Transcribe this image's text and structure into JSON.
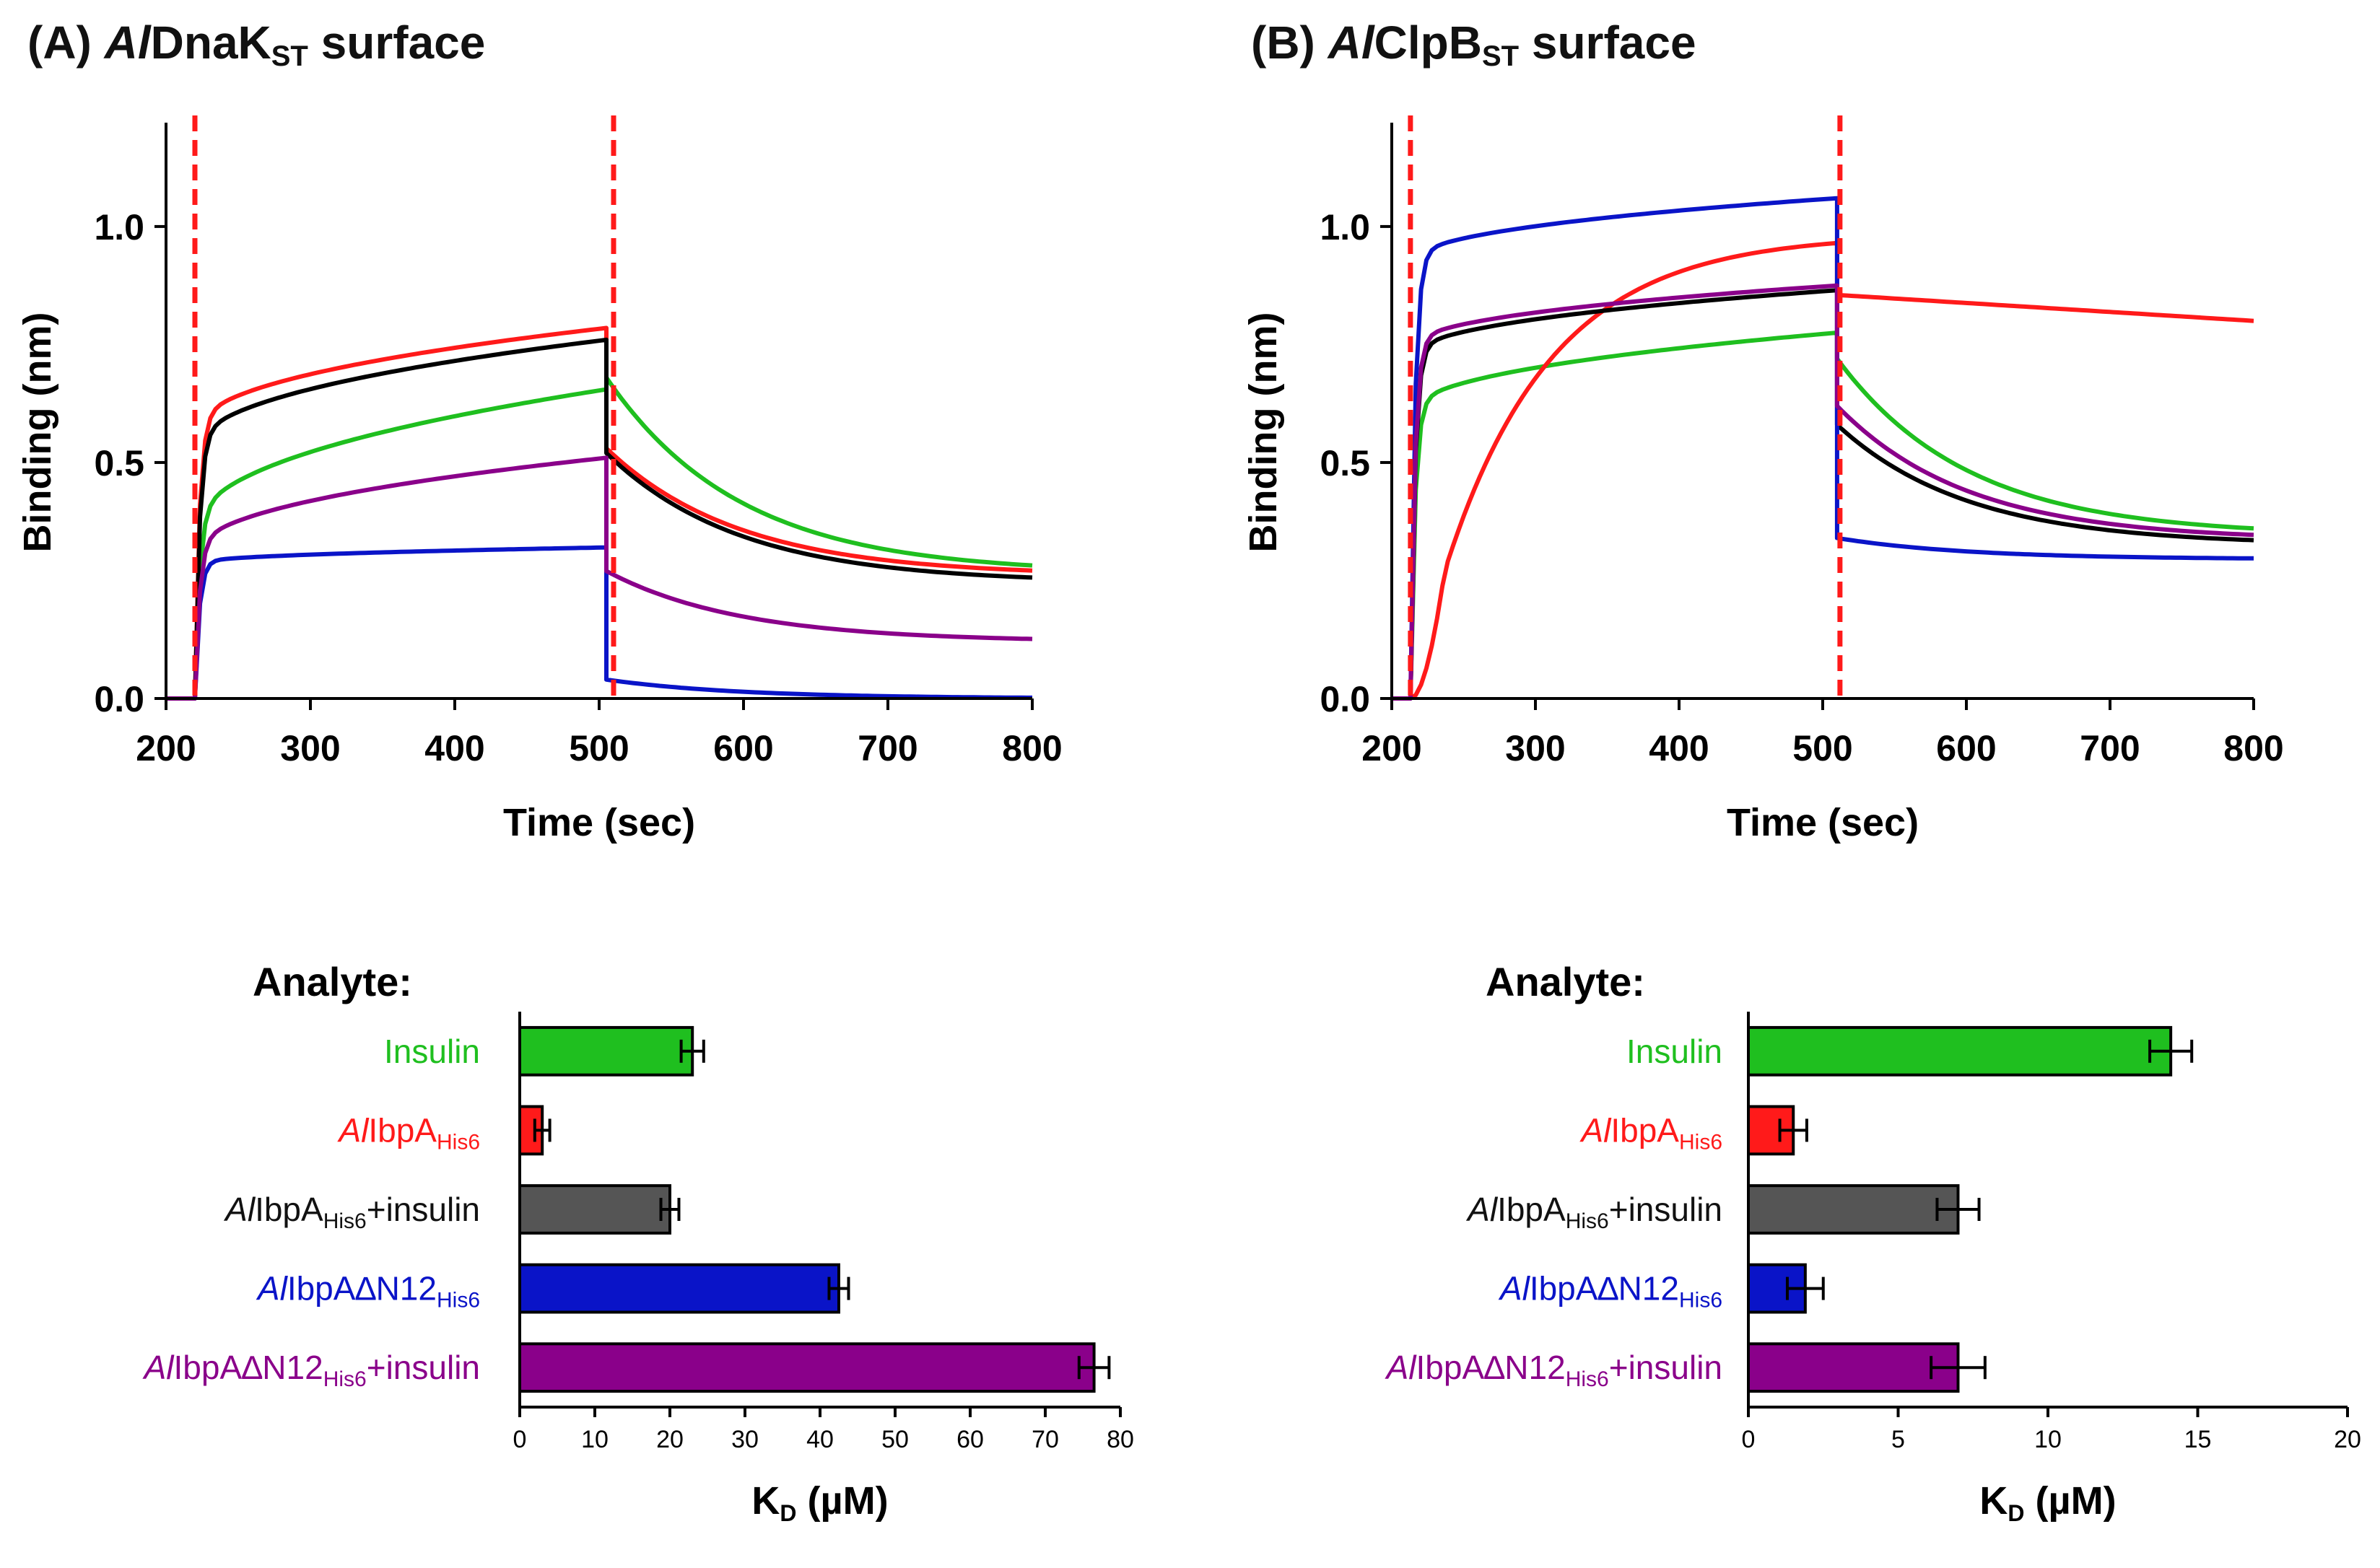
{
  "panels": {
    "A": {
      "letter": "(A)",
      "italic": "Al",
      "main": "DnaK",
      "sub": "ST",
      "suffix": " surface"
    },
    "B": {
      "letter": "(B)",
      "italic": "Al",
      "main": "ClpB",
      "sub": "ST",
      "suffix": " surface"
    }
  },
  "colors": {
    "insulin": "#1fbf1f",
    "ibpA": "#ff1a1a",
    "ibpA_insulin": "#555555",
    "dN12": "#0a14c8",
    "dN12_insulin": "#8a008a",
    "black": "#000000",
    "dashed": "#ff1a1a"
  },
  "chart_data": [
    {
      "id": "A-sensorgram",
      "type": "line",
      "xlabel": "Time (sec)",
      "ylabel": "Binding (nm)",
      "xlim": [
        200,
        800
      ],
      "ylim": [
        0,
        1.2
      ],
      "xticks": [
        200,
        300,
        400,
        500,
        600,
        700,
        800
      ],
      "yticks": [
        0.0,
        0.5,
        1.0
      ],
      "ytick_labels": [
        "0.0",
        "0.5",
        "1.0"
      ],
      "markers_x": [
        220,
        510
      ],
      "association": [
        220,
        505
      ],
      "dissociation": [
        505,
        800
      ],
      "series": [
        {
          "name": "Insulin",
          "color": "#1fbf1f",
          "r_start": 0.35,
          "r_end": 0.655,
          "d_level": 0.68,
          "d_final": 0.265
        },
        {
          "name": "AlIbpA His6",
          "color": "#ff1a1a",
          "r_start": 0.56,
          "r_end": 0.785,
          "d_level": 0.53,
          "d_final": 0.26
        },
        {
          "name": "AlIbpA His6+insulin",
          "color": "#000000",
          "r_start": 0.52,
          "r_end": 0.76,
          "d_level": 0.52,
          "d_final": 0.245
        },
        {
          "name": "AlIbpAdN12 His6",
          "color": "#0a14c8",
          "r_start": 0.285,
          "r_end": 0.32,
          "d_level": 0.04,
          "d_final": 0.0
        },
        {
          "name": "AlIbpAdN12 His6+insulin",
          "color": "#8a008a",
          "r_start": 0.3,
          "r_end": 0.51,
          "d_level": 0.27,
          "d_final": 0.12
        }
      ]
    },
    {
      "id": "B-sensorgram",
      "type": "line",
      "xlabel": "Time (sec)",
      "ylabel": "Binding (nm)",
      "xlim": [
        200,
        800
      ],
      "ylim": [
        0,
        1.2
      ],
      "xticks": [
        200,
        300,
        400,
        500,
        600,
        700,
        800
      ],
      "yticks": [
        0.0,
        0.5,
        1.0
      ],
      "ytick_labels": [
        "0.0",
        "0.5",
        "1.0"
      ],
      "markers_x": [
        213,
        512
      ],
      "association": [
        213,
        510
      ],
      "dissociation": [
        510,
        800
      ],
      "series": [
        {
          "name": "Insulin",
          "color": "#1fbf1f",
          "r_start": 0.6,
          "r_end": 0.775,
          "d_level": 0.72,
          "d_final": 0.345
        },
        {
          "name": "AlIbpA His6",
          "color": "#ff1a1a",
          "r_start": 0.55,
          "r_end": 0.965,
          "d_level": 0.855,
          "d_final": 0.8,
          "slow": true
        },
        {
          "name": "AlIbpA His6+insulin",
          "color": "#000000",
          "r_start": 0.72,
          "r_end": 0.865,
          "d_level": 0.58,
          "d_final": 0.325
        },
        {
          "name": "AlIbpAdN12 His6",
          "color": "#0a14c8",
          "r_start": 0.92,
          "r_end": 1.06,
          "d_level": 0.34,
          "d_final": 0.295
        },
        {
          "name": "AlIbpAdN12 His6+insulin",
          "color": "#8a008a",
          "r_start": 0.74,
          "r_end": 0.875,
          "d_level": 0.62,
          "d_final": 0.335
        }
      ]
    },
    {
      "id": "A-kd",
      "type": "bar",
      "orientation": "horizontal",
      "title": "Analyte:",
      "xlabel_main": "K",
      "xlabel_sub": "D",
      "xlabel_unit": " (µM)",
      "xlim": [
        0,
        80
      ],
      "xticks": [
        0,
        10,
        20,
        30,
        40,
        50,
        60,
        70,
        80
      ],
      "categories": [
        "Insulin",
        "AlIbpA His6",
        "AlIbpA His6+insulin",
        "AlIbpAdN12 His6",
        "AlIbpAdN12 His6+insulin"
      ],
      "values": [
        23,
        3,
        20,
        42.5,
        76.5
      ],
      "errors": [
        1.5,
        1.0,
        1.2,
        1.3,
        2.0
      ],
      "colors": [
        "#1fbf1f",
        "#ff1a1a",
        "#555555",
        "#0a14c8",
        "#8a008a"
      ]
    },
    {
      "id": "B-kd",
      "type": "bar",
      "orientation": "horizontal",
      "title": "Analyte:",
      "xlabel_main": "K",
      "xlabel_sub": "D",
      "xlabel_unit": " (µM)",
      "xlim": [
        0,
        20
      ],
      "xticks": [
        0,
        5,
        10,
        15,
        20
      ],
      "xtick_labels": [
        "0",
        "5",
        "10",
        "15",
        "20"
      ],
      "categories": [
        "Insulin",
        "AlIbpA His6",
        "AlIbpA His6+insulin",
        "AlIbpAdN12 His6",
        "AlIbpAdN12 His6+insulin"
      ],
      "values": [
        14.1,
        1.5,
        7.0,
        1.9,
        7.0
      ],
      "errors": [
        0.7,
        0.45,
        0.7,
        0.6,
        0.9
      ],
      "colors": [
        "#1fbf1f",
        "#ff1a1a",
        "#555555",
        "#0a14c8",
        "#8a008a"
      ]
    }
  ],
  "bar_labels": [
    {
      "pre": "",
      "base": "Insulin",
      "sub": "",
      "post": "",
      "color": "#1fbf1f"
    },
    {
      "pre": "Al",
      "base": "IbpA",
      "sub": "His6",
      "post": "",
      "color": "#ff1a1a"
    },
    {
      "pre": "Al",
      "base": "IbpA",
      "sub": "His6",
      "post": "+insulin",
      "color": "#111111"
    },
    {
      "pre": "Al",
      "base": "IbpA∆N12",
      "sub": "His6",
      "post": "",
      "color": "#0a14c8"
    },
    {
      "pre": "Al",
      "base": "IbpA∆N12",
      "sub": "His6",
      "post": "+insulin",
      "color": "#8a008a"
    }
  ]
}
